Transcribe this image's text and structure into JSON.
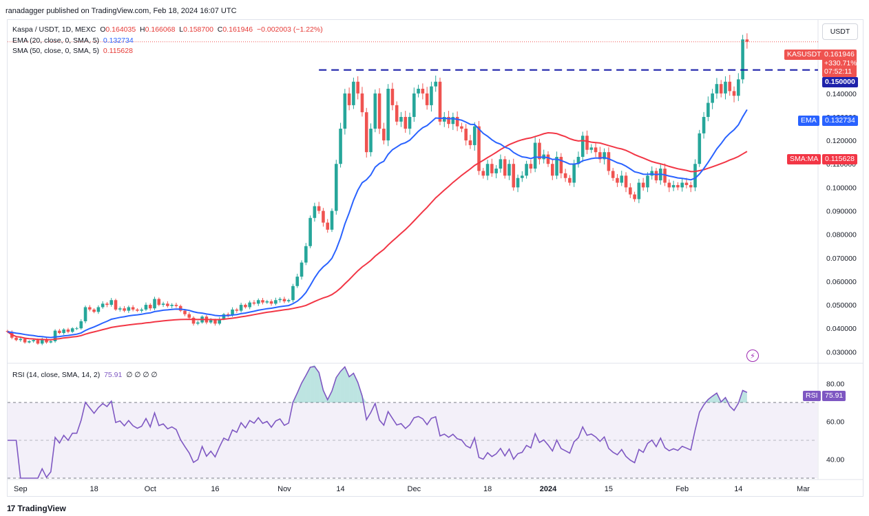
{
  "header": {
    "published": "ranadagger published on TradingView.com, Feb 18, 2024 16:07 UTC"
  },
  "legend": {
    "symbol": "Kaspa / USDT, 1D, MEXC",
    "o_label": "O",
    "o_value": "0.164035",
    "h_label": "H",
    "h_value": "0.166068",
    "l_label": "L",
    "l_value": "0.158700",
    "c_label": "C",
    "c_value": "0.161946",
    "change": "−0.002003 (−1.22%)",
    "ema_label": "EMA (20, close, 0, SMA, 5)",
    "ema_value": "0.132734",
    "sma_label": "SMA (50, close, 0, SMA, 5)",
    "sma_value": "0.115628",
    "rsi_label": "RSI (14, close, SMA, 14, 2)",
    "rsi_value": "75.91",
    "rsi_extra": "∅ ∅ ∅ ∅"
  },
  "currency_button": "USDT",
  "price_tag": {
    "name": "KASUSDT",
    "value": "0.161946",
    "change": "+330.71%",
    "countdown": "07:52:11",
    "color": "#ef5350"
  },
  "level_tag": {
    "value": "0.150000",
    "color": "#1e22aa"
  },
  "ema_tag": {
    "name": "EMA",
    "value": "0.132734",
    "color": "#2962ff"
  },
  "sma_tag": {
    "name": "SMA:MA",
    "value": "0.115628",
    "color": "#f23645"
  },
  "rsi_tag": {
    "name": "RSI",
    "value": "75.91",
    "color": "#7e57c2"
  },
  "brand": "TradingView",
  "chart_data": {
    "type": "candlestick",
    "title": "Kaspa / USDT, 1D, MEXC",
    "price_axis": {
      "ticks": [
        "0.140000",
        "0.130000",
        "0.120000",
        "0.110000",
        "0.100000",
        "0.090000",
        "0.080000",
        "0.070000",
        "0.060000",
        "0.050000",
        "0.040000",
        "0.030000"
      ],
      "ylim": [
        0.026,
        0.171
      ]
    },
    "rsi_axis": {
      "ticks": [
        "80.00",
        "60.00",
        "40.00"
      ],
      "ylim": [
        30,
        90
      ],
      "band": [
        30,
        70
      ]
    },
    "x_ticks": [
      {
        "label": "Sep",
        "idx": 3
      },
      {
        "label": "18",
        "idx": 20
      },
      {
        "label": "Oct",
        "idx": 33
      },
      {
        "label": "16",
        "idx": 48
      },
      {
        "label": "Nov",
        "idx": 64
      },
      {
        "label": "14",
        "idx": 77
      },
      {
        "label": "Dec",
        "idx": 94
      },
      {
        "label": "18",
        "idx": 111
      },
      {
        "label": "2024",
        "idx": 125
      },
      {
        "label": "15",
        "idx": 139
      },
      {
        "label": "Feb",
        "idx": 156
      },
      {
        "label": "14",
        "idx": 169
      },
      {
        "label": "Mar",
        "idx": 184
      }
    ],
    "horizontal_level": 0.15,
    "horizontal_level_from_idx": 72,
    "candles_start_date": "2023-08-29",
    "close": [
      0.0385,
      0.036,
      0.035,
      0.0355,
      0.034,
      0.0345,
      0.035,
      0.0335,
      0.0355,
      0.034,
      0.0345,
      0.039,
      0.038,
      0.0395,
      0.0385,
      0.04,
      0.04,
      0.043,
      0.049,
      0.048,
      0.047,
      0.049,
      0.0505,
      0.05,
      0.052,
      0.048,
      0.0485,
      0.0475,
      0.049,
      0.048,
      0.0475,
      0.048,
      0.05,
      0.0485,
      0.0525,
      0.05,
      0.0505,
      0.0495,
      0.05,
      0.0495,
      0.0475,
      0.046,
      0.0445,
      0.042,
      0.0425,
      0.045,
      0.0425,
      0.0435,
      0.042,
      0.044,
      0.046,
      0.0455,
      0.048,
      0.0475,
      0.05,
      0.049,
      0.051,
      0.0505,
      0.052,
      0.051,
      0.0515,
      0.0505,
      0.052,
      0.0525,
      0.0515,
      0.052,
      0.058,
      0.062,
      0.068,
      0.075,
      0.087,
      0.092,
      0.09,
      0.085,
      0.082,
      0.09,
      0.11,
      0.125,
      0.14,
      0.135,
      0.145,
      0.14,
      0.132,
      0.115,
      0.125,
      0.14,
      0.125,
      0.12,
      0.142,
      0.135,
      0.128,
      0.13,
      0.125,
      0.13,
      0.14,
      0.142,
      0.14,
      0.135,
      0.143,
      0.145,
      0.128,
      0.13,
      0.127,
      0.13,
      0.126,
      0.125,
      0.12,
      0.118,
      0.126,
      0.107,
      0.105,
      0.11,
      0.106,
      0.108,
      0.112,
      0.105,
      0.11,
      0.1,
      0.104,
      0.105,
      0.11,
      0.108,
      0.119,
      0.112,
      0.114,
      0.11,
      0.105,
      0.113,
      0.106,
      0.104,
      0.102,
      0.11,
      0.113,
      0.122,
      0.116,
      0.117,
      0.115,
      0.112,
      0.115,
      0.107,
      0.104,
      0.102,
      0.105,
      0.1,
      0.097,
      0.095,
      0.102,
      0.1,
      0.105,
      0.107,
      0.103,
      0.108,
      0.102,
      0.1,
      0.101,
      0.1,
      0.102,
      0.101,
      0.1,
      0.11,
      0.123,
      0.13,
      0.136,
      0.14,
      0.144,
      0.14,
      0.145,
      0.141,
      0.139,
      0.146,
      0.163,
      0.162
    ]
  }
}
